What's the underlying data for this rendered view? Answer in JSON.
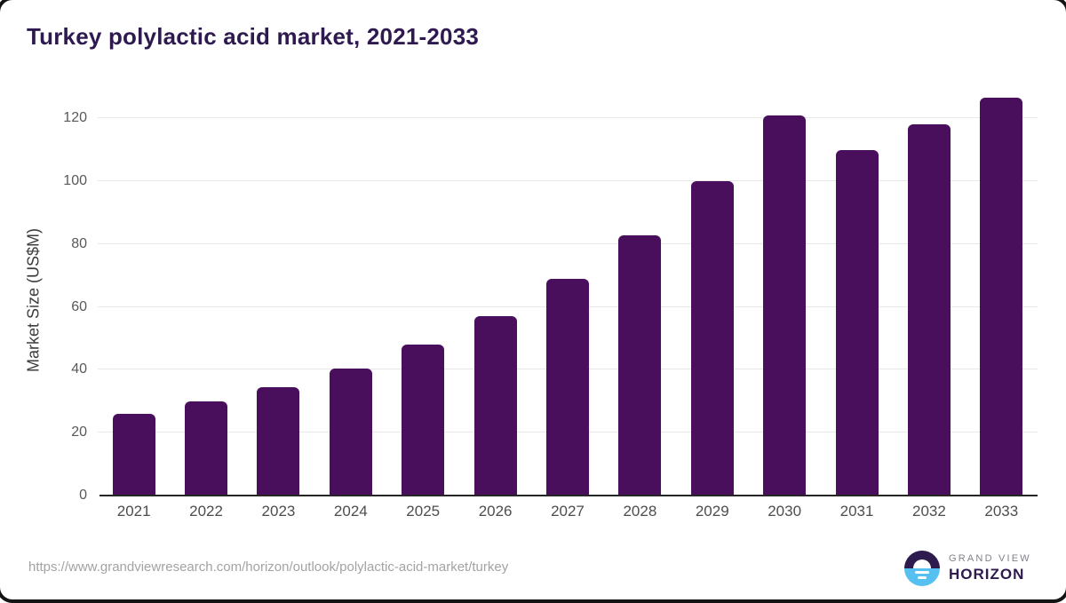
{
  "title": "Turkey polylactic acid market, 2021-2033",
  "chart_data": {
    "type": "bar",
    "categories": [
      "2021",
      "2022",
      "2023",
      "2024",
      "2025",
      "2026",
      "2027",
      "2028",
      "2029",
      "2030",
      "2031",
      "2032",
      "2033"
    ],
    "values": [
      26,
      29.9,
      34.5,
      40.3,
      48,
      57.2,
      68.9,
      82.8,
      100,
      121,
      110,
      118,
      126.6
    ],
    "title": "Turkey polylactic acid market, 2021-2033",
    "xlabel": "",
    "ylabel": "Market Size (US$M)",
    "yticks": [
      0,
      20,
      40,
      60,
      80,
      100,
      120
    ],
    "ylim": [
      0,
      129.7
    ],
    "grid": true,
    "legend": "none",
    "bar_color": "#490f5c"
  },
  "footer": {
    "source_url": "https://www.grandviewresearch.com/horizon/outlook/polylactic-acid-market/turkey",
    "logo": {
      "line1": "GRAND VIEW",
      "line2": "HORIZON"
    }
  },
  "colors": {
    "bar": "#490f5c",
    "title_text": "#2e1a4f",
    "gridline": "#e8e8e8",
    "axis_line": "#262626",
    "tick_text": "#58595b",
    "logo_navy": "#2d1b4e",
    "logo_blue": "#56c1f0"
  }
}
